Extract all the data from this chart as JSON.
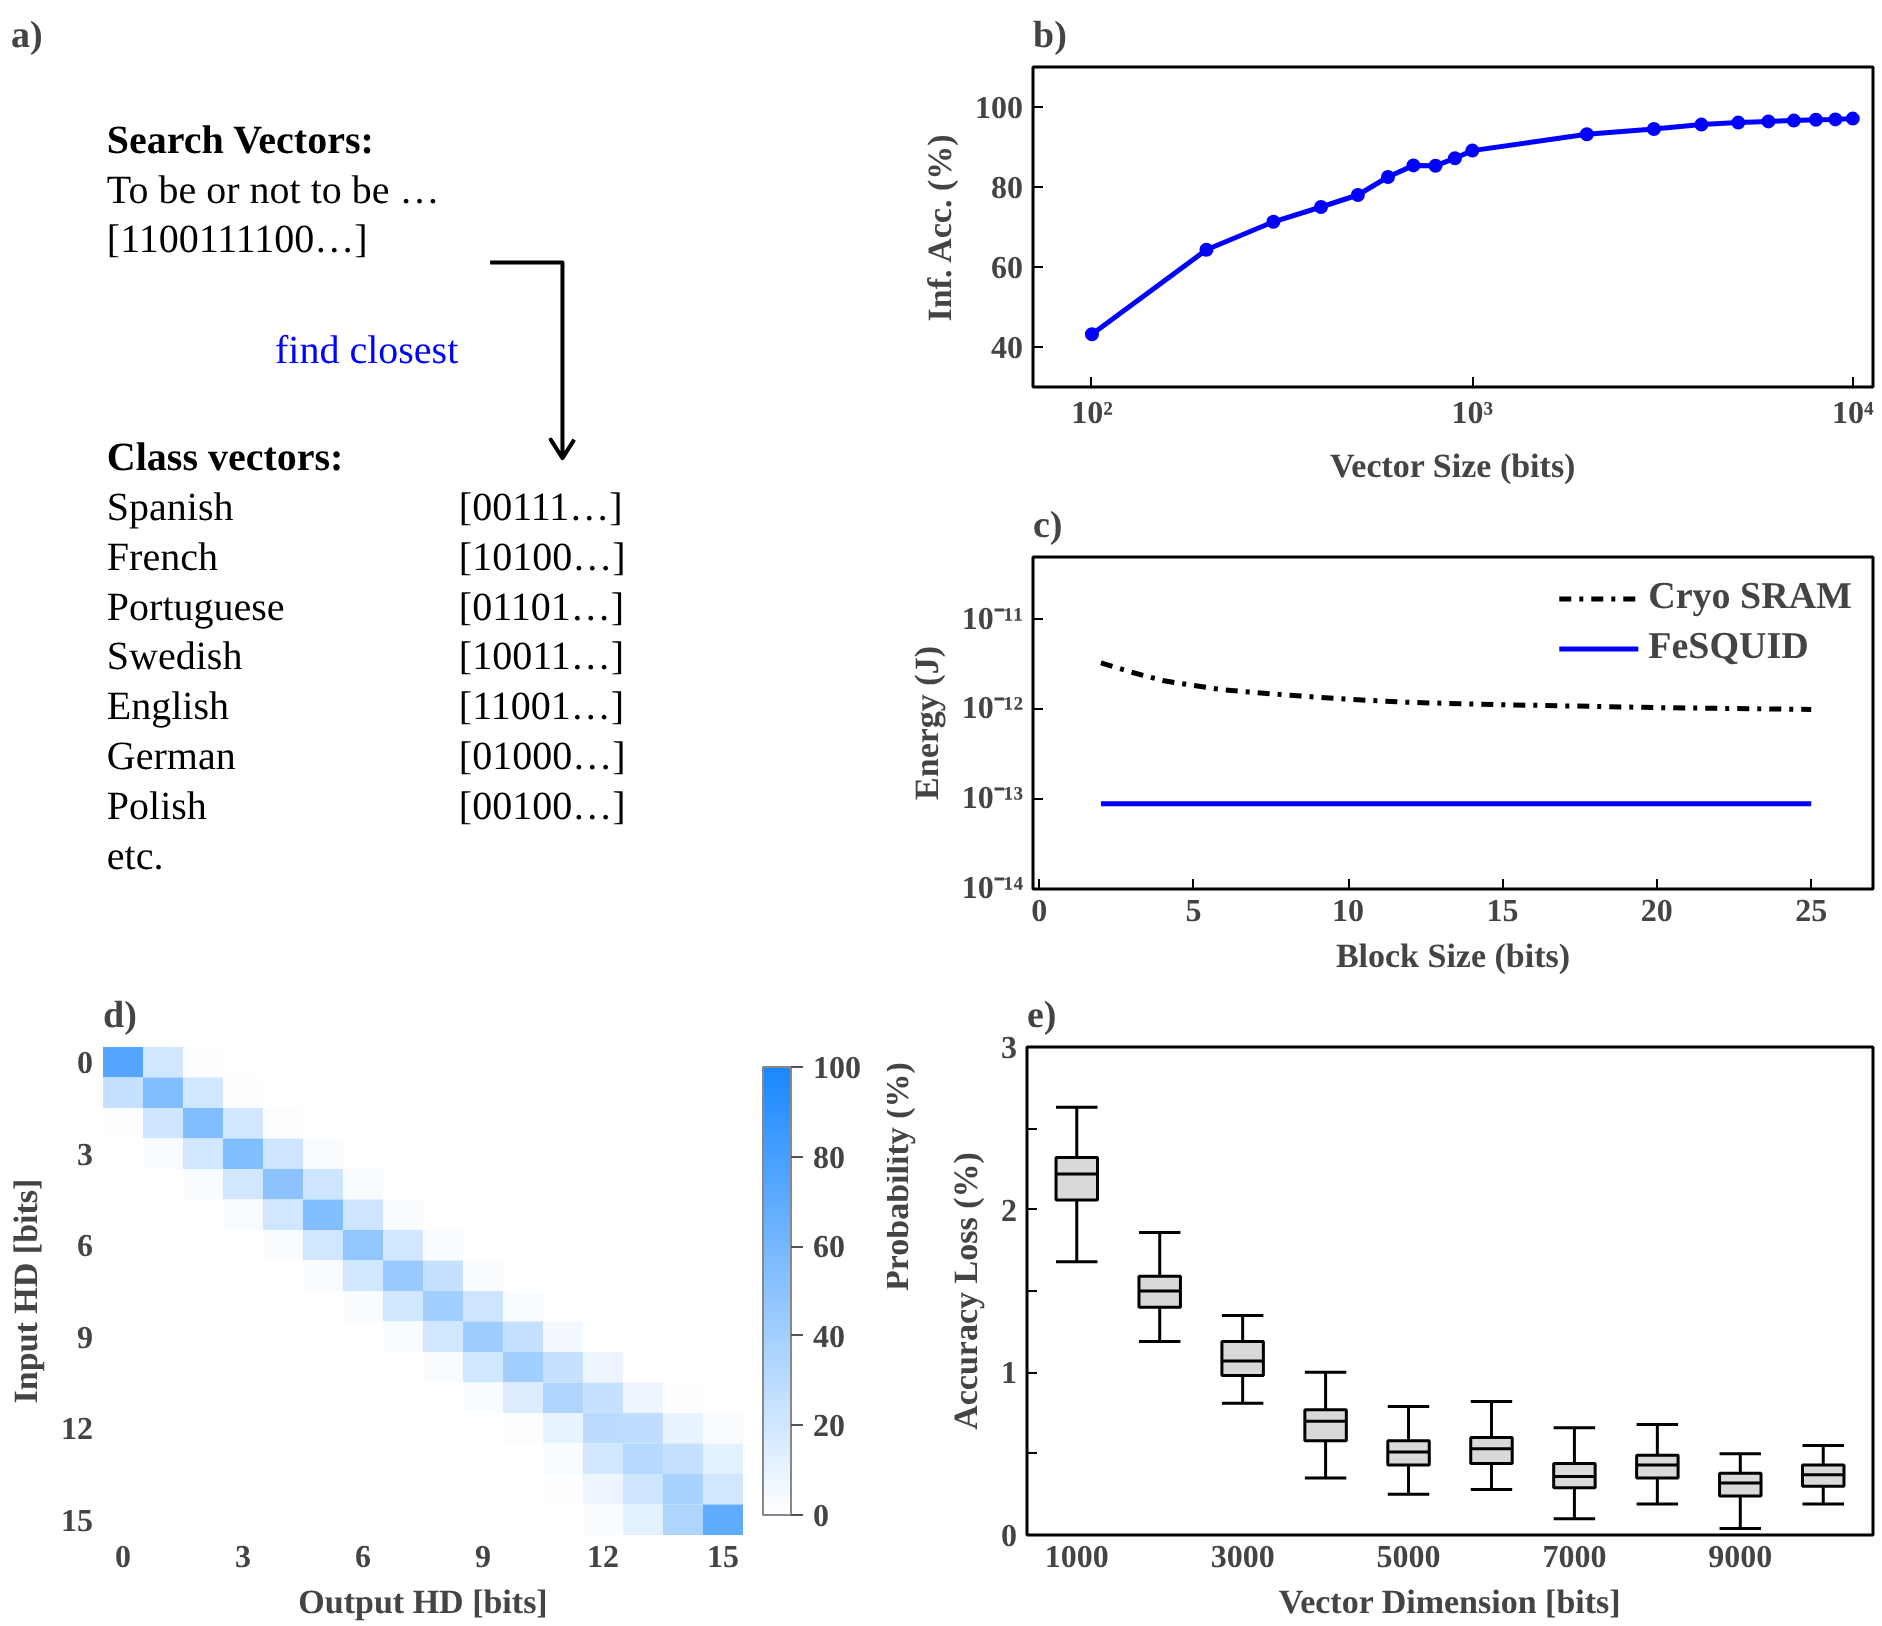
{
  "chart_data": [
    {
      "type": "other",
      "title": "a)",
      "annotations": [
        "Search Vectors:",
        "To be or not to be …",
        "[1100111100…]",
        "find closest",
        "Class vectors:",
        "Spanish",
        "[00111…]",
        "French",
        "[10100…]",
        "Portuguese",
        "[01101…]",
        "Swedish",
        "[10011…]",
        "English",
        "[11001…]",
        "German",
        "[01000…]",
        "Polish",
        "[00100…]",
        "etc."
      ]
    },
    {
      "type": "line",
      "title": "b)",
      "xlabel": "Vector Size (bits)",
      "ylabel": "Inf. Acc. (%)",
      "log": "x",
      "marker": "circle",
      "xlim": [
        70,
        11300
      ],
      "ylim": [
        30,
        110
      ],
      "xticks": [
        {
          "value": 100,
          "label": "10²"
        },
        {
          "value": 1000,
          "label": "10³"
        },
        {
          "value": 10000,
          "label": "10⁴"
        }
      ],
      "yticks": [
        40,
        60,
        80,
        100
      ],
      "x": [
        100,
        200,
        300,
        400,
        500,
        600,
        700,
        800,
        900,
        1000,
        2000,
        3000,
        4000,
        5000,
        6000,
        7000,
        8000,
        9000,
        10000
      ],
      "series": [
        {
          "color": "#0000ff",
          "values": [
            43.2,
            64.3,
            71.3,
            75,
            78,
            82.5,
            85.4,
            85.3,
            87.2,
            89.1,
            93.2,
            94.5,
            95.6,
            96.1,
            96.4,
            96.6,
            96.8,
            96.9,
            97.1
          ]
        }
      ]
    },
    {
      "type": "line",
      "title": "c)",
      "xlabel": "Block Size (bits)",
      "ylabel": "Energy (J)",
      "log": "y",
      "legend": "top right",
      "xlim": [
        -0.2,
        27
      ],
      "ylim": [
        1e-14,
        5e-11
      ],
      "xticks": [
        0,
        5,
        10,
        15,
        20,
        25
      ],
      "yticks": [
        {
          "value": 1e-14,
          "label": "10⁻¹⁴"
        },
        {
          "value": 1e-13,
          "label": "10⁻¹³"
        },
        {
          "value": 1e-12,
          "label": "10⁻¹²"
        },
        {
          "value": 1e-11,
          "label": "10⁻¹¹"
        }
      ],
      "series": [
        {
          "name": "Cryo SRAM",
          "color": "#000000",
          "line_style": "dashdot",
          "x": [
            2,
            3,
            4,
            5,
            6,
            8,
            10,
            12,
            15,
            20,
            25
          ],
          "values": [
            3.3e-12,
            2.6e-12,
            2.1e-12,
            1.85e-12,
            1.65e-12,
            1.45e-12,
            1.3e-12,
            1.2e-12,
            1.13e-12,
            1.05e-12,
            1e-12
          ]
        },
        {
          "name": "FeSQUID",
          "color": "#0000ff",
          "line_style": "solid",
          "x": [
            2,
            25
          ],
          "values": [
            8.9e-14,
            8.9e-14
          ]
        }
      ]
    },
    {
      "type": "heatmap",
      "title": "d)",
      "xlabel": "Output HD [bits]",
      "ylabel": "Input HD [bits]",
      "clabel": "Probability (%)",
      "clim": [
        0,
        100
      ],
      "cticks": [
        0,
        20,
        40,
        60,
        80,
        100
      ],
      "categories": [
        "0",
        null,
        null,
        "3",
        null,
        null,
        "6",
        null,
        null,
        "9",
        null,
        null,
        "12",
        null,
        null,
        "15"
      ],
      "y_categories": [
        "0",
        null,
        null,
        "3",
        null,
        null,
        "6",
        null,
        null,
        "9",
        null,
        null,
        "12",
        null,
        null,
        "15"
      ],
      "cells": [
        [
          75,
          20,
          2,
          0,
          0,
          0,
          0,
          0,
          0,
          0,
          0,
          0,
          0,
          0,
          0,
          0
        ],
        [
          25,
          55,
          20,
          2,
          0,
          0,
          0,
          0,
          0,
          0,
          0,
          0,
          0,
          0,
          0,
          0
        ],
        [
          2,
          22,
          55,
          20,
          2,
          0,
          0,
          0,
          0,
          0,
          0,
          0,
          0,
          0,
          0,
          0
        ],
        [
          0,
          3,
          20,
          55,
          22,
          3,
          0,
          0,
          0,
          0,
          0,
          0,
          0,
          0,
          0,
          0
        ],
        [
          0,
          0,
          3,
          20,
          50,
          22,
          3,
          0,
          0,
          0,
          0,
          0,
          0,
          0,
          0,
          0
        ],
        [
          0,
          0,
          0,
          3,
          20,
          55,
          22,
          3,
          0,
          0,
          0,
          0,
          0,
          0,
          0,
          0
        ],
        [
          0,
          0,
          0,
          0,
          3,
          20,
          48,
          20,
          3,
          0,
          0,
          0,
          0,
          0,
          0,
          0
        ],
        [
          0,
          0,
          0,
          0,
          0,
          3,
          20,
          45,
          25,
          3,
          0,
          0,
          0,
          0,
          0,
          0
        ],
        [
          0,
          0,
          0,
          0,
          0,
          0,
          3,
          20,
          40,
          22,
          3,
          0,
          0,
          0,
          0,
          0
        ],
        [
          0,
          0,
          0,
          0,
          0,
          0,
          0,
          3,
          20,
          42,
          25,
          5,
          0,
          0,
          0,
          0
        ],
        [
          0,
          0,
          0,
          0,
          0,
          0,
          0,
          0,
          3,
          20,
          40,
          25,
          8,
          0,
          0,
          0
        ],
        [
          0,
          0,
          0,
          0,
          0,
          0,
          0,
          0,
          0,
          3,
          15,
          35,
          25,
          8,
          2,
          0
        ],
        [
          0,
          0,
          0,
          0,
          0,
          0,
          0,
          0,
          0,
          0,
          2,
          10,
          30,
          28,
          10,
          3
        ],
        [
          0,
          0,
          0,
          0,
          0,
          0,
          0,
          0,
          0,
          0,
          0,
          3,
          20,
          32,
          25,
          12
        ],
        [
          0,
          0,
          0,
          0,
          0,
          0,
          0,
          0,
          0,
          0,
          0,
          1,
          8,
          22,
          38,
          20
        ],
        [
          0,
          0,
          0,
          0,
          0,
          0,
          0,
          0,
          0,
          0,
          0,
          0,
          3,
          12,
          35,
          70
        ]
      ]
    },
    {
      "type": "box",
      "title": "e)",
      "xlabel": "Vector Dimension [bits]",
      "ylabel": "Accuracy Loss (%)",
      "ylim": [
        0,
        3
      ],
      "yticks": [
        0,
        {
          "value": 0.5,
          "label": null
        },
        1,
        {
          "value": 1.5,
          "label": null
        },
        2,
        {
          "value": 2.5,
          "label": null
        },
        3
      ],
      "categories": [
        "1000",
        null,
        "3000",
        null,
        "5000",
        null,
        "7000",
        null,
        "9000",
        null
      ],
      "series": [
        {
          "color": "#d9d9d9",
          "boxes": [
            {
              "low": 1.68,
              "q1": 2.06,
              "median": 2.22,
              "q3": 2.32,
              "high": 2.63
            },
            {
              "low": 1.19,
              "q1": 1.4,
              "median": 1.5,
              "q3": 1.59,
              "high": 1.86
            },
            {
              "low": 0.81,
              "q1": 0.98,
              "median": 1.07,
              "q3": 1.19,
              "high": 1.35
            },
            {
              "low": 0.35,
              "q1": 0.58,
              "median": 0.7,
              "q3": 0.77,
              "high": 1.0
            },
            {
              "low": 0.25,
              "q1": 0.43,
              "median": 0.51,
              "q3": 0.58,
              "high": 0.79
            },
            {
              "low": 0.28,
              "q1": 0.44,
              "median": 0.53,
              "q3": 0.6,
              "high": 0.82
            },
            {
              "low": 0.1,
              "q1": 0.29,
              "median": 0.36,
              "q3": 0.44,
              "high": 0.66
            },
            {
              "low": 0.19,
              "q1": 0.35,
              "median": 0.43,
              "q3": 0.49,
              "high": 0.68
            },
            {
              "low": 0.04,
              "q1": 0.24,
              "median": 0.32,
              "q3": 0.38,
              "high": 0.5
            },
            {
              "low": 0.19,
              "q1": 0.3,
              "median": 0.37,
              "q3": 0.43,
              "high": 0.55
            }
          ]
        }
      ]
    }
  ]
}
